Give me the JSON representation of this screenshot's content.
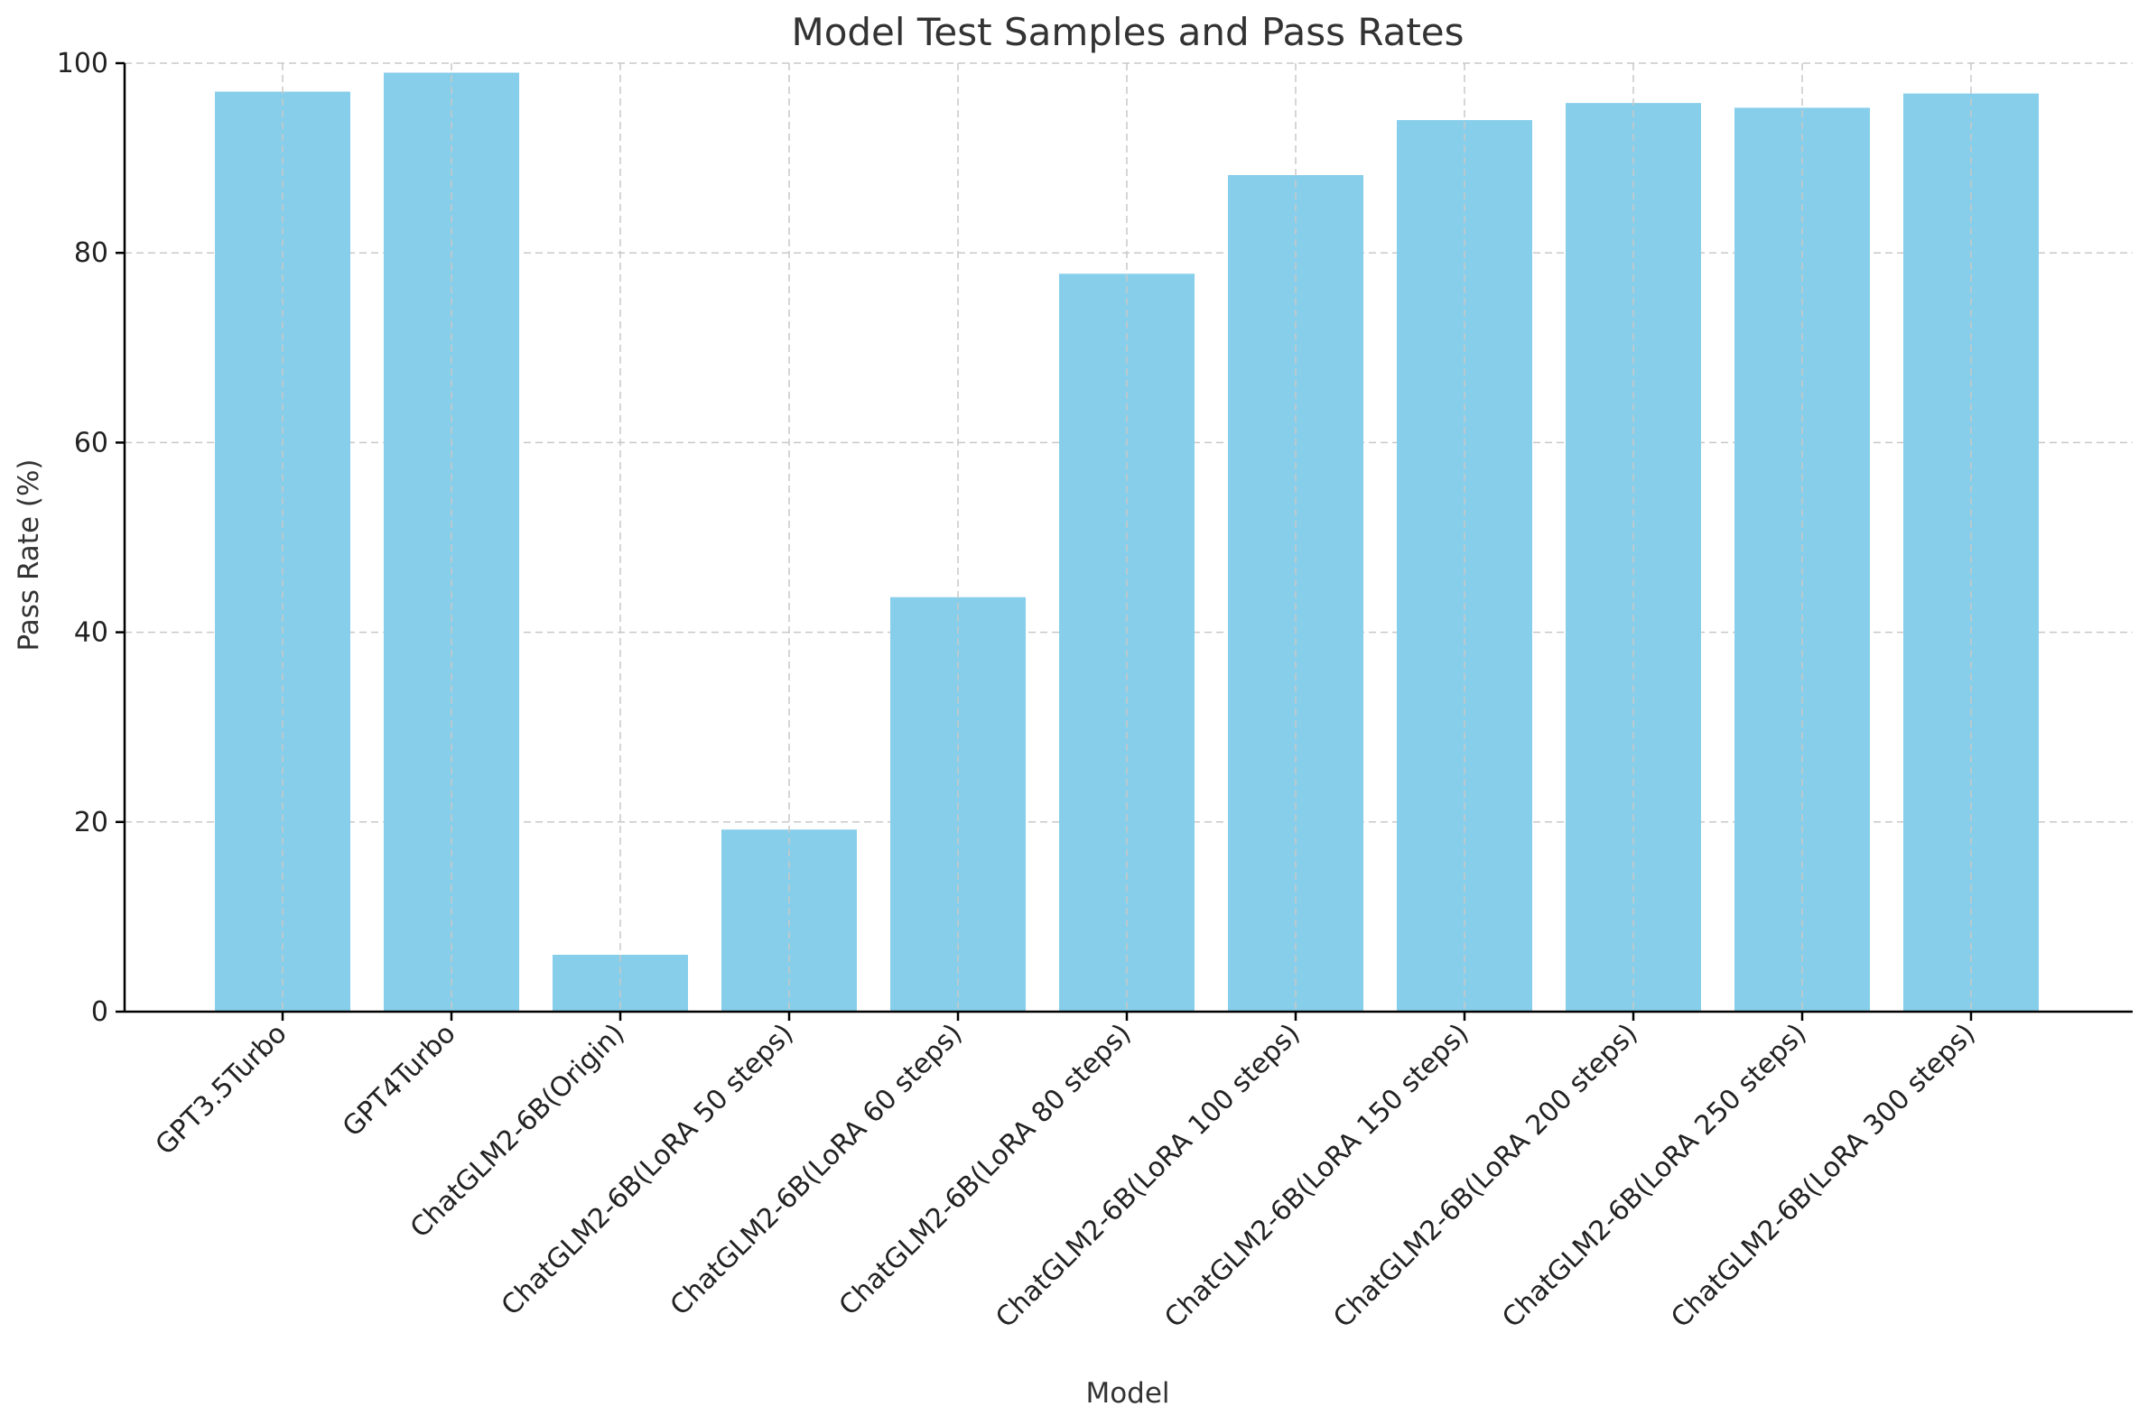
{
  "chart_data": {
    "type": "bar",
    "title": "Model Test Samples and Pass Rates",
    "xlabel": "Model",
    "ylabel": "Pass Rate (%)",
    "ylim": [
      0,
      100
    ],
    "yticks": [
      0,
      20,
      40,
      60,
      80,
      100
    ],
    "grid": true,
    "bar_color": "#87CEEB",
    "categories": [
      "GPT3.5Turbo",
      "GPT4Turbo",
      "ChatGLM2-6B(Origin)",
      "ChatGLM2-6B(LoRA 50 steps)",
      "ChatGLM2-6B(LoRA 60 steps)",
      "ChatGLM2-6B(LoRA 80 steps)",
      "ChatGLM2-6B(LoRA 100 steps)",
      "ChatGLM2-6B(LoRA 150 steps)",
      "ChatGLM2-6B(LoRA 200 steps)",
      "ChatGLM2-6B(LoRA 250 steps)",
      "ChatGLM2-6B(LoRA 300 steps)"
    ],
    "values": [
      97.0,
      99.0,
      6.0,
      19.2,
      43.7,
      77.8,
      88.2,
      94.0,
      95.8,
      95.3,
      96.8
    ]
  }
}
